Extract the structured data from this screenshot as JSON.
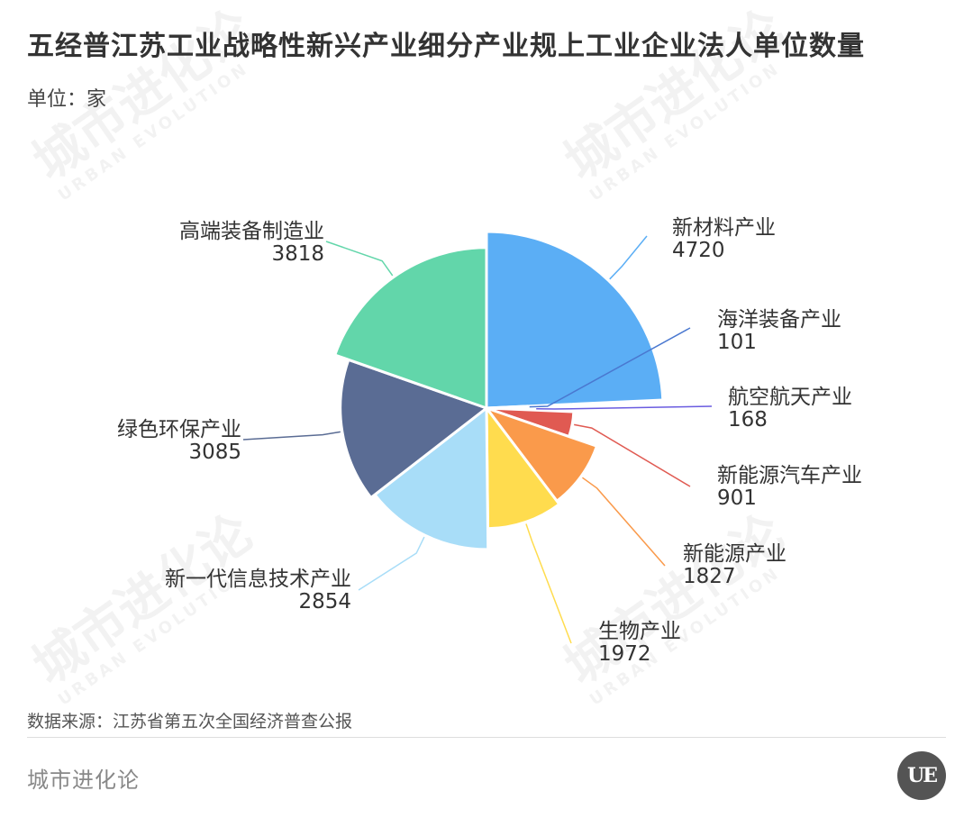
{
  "title": "五经普江苏工业战略性新兴产业细分产业规上工业企业法人单位数量",
  "unit_label": "单位：家",
  "source_text": "数据来源：江苏省第五次全国经济普查公报",
  "brand_text": "城市进化论",
  "logo_text": "UE",
  "watermark": {
    "cn": "城市进化论",
    "en": "URBAN EVOLUTION"
  },
  "chart_data": {
    "type": "pie",
    "style": "nightingale",
    "start_at": "12 o'clock",
    "direction": "clockwise",
    "categories": [
      "新材料产业",
      "海洋装备产业",
      "航空航天产业",
      "新能源汽车产业",
      "新能源产业",
      "生物产业",
      "新一代信息技术产业",
      "绿色环保产业",
      "高端装备制造业"
    ],
    "values": [
      4720,
      101,
      168,
      901,
      1827,
      1972,
      2854,
      3085,
      3818
    ],
    "colors": [
      "#5BAEF5",
      "#4A78D0",
      "#6A5CE0",
      "#E05A52",
      "#FA9A4B",
      "#FFDC4E",
      "#A8DDF8",
      "#5A6C94",
      "#62D6AA"
    ]
  }
}
